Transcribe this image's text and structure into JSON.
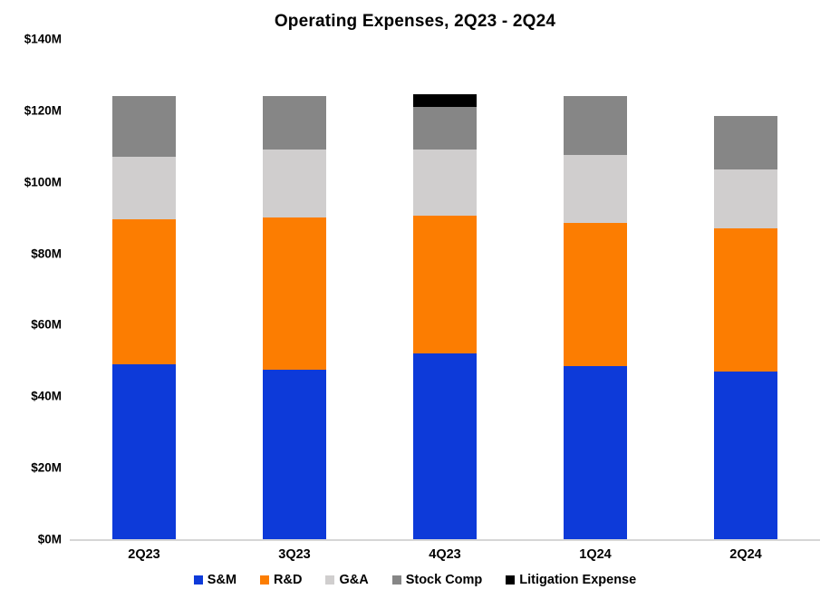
{
  "title": "Operating Expenses, 2Q23 - 2Q24",
  "chart_data": {
    "type": "bar",
    "stacked": true,
    "title": "Operating Expenses, 2Q23 - 2Q24",
    "categories": [
      "2Q23",
      "3Q23",
      "4Q23",
      "1Q24",
      "2Q24"
    ],
    "series": [
      {
        "name": "S&M",
        "color": "#0d3ad9",
        "values": [
          49,
          47.5,
          52,
          48.5,
          47
        ]
      },
      {
        "name": "R&D",
        "color": "#fc7d01",
        "values": [
          40.5,
          42.5,
          38.5,
          40,
          40
        ]
      },
      {
        "name": "G&A",
        "color": "#d0cece",
        "values": [
          17.5,
          19,
          18.5,
          19,
          16.5
        ]
      },
      {
        "name": "Stock Comp",
        "color": "#868686",
        "values": [
          17,
          15,
          12,
          16.5,
          15
        ]
      },
      {
        "name": "Litigation Expense",
        "color": "#000000",
        "values": [
          0,
          0,
          3.5,
          0,
          0
        ]
      }
    ],
    "totals": [
      124,
      124,
      124.5,
      124,
      118.5
    ],
    "xlabel": "",
    "ylabel": "",
    "ylim": [
      0,
      140
    ],
    "ytick_step": 20,
    "ytick_labels": [
      "$0M",
      "$20M",
      "$40M",
      "$60M",
      "$80M",
      "$100M",
      "$120M",
      "$140M"
    ],
    "unit": "$M",
    "grid": false,
    "legend_position": "bottom"
  },
  "colors": {
    "background": "#ffffff",
    "axis_line": "#d6d6d6",
    "text": "#000000"
  }
}
